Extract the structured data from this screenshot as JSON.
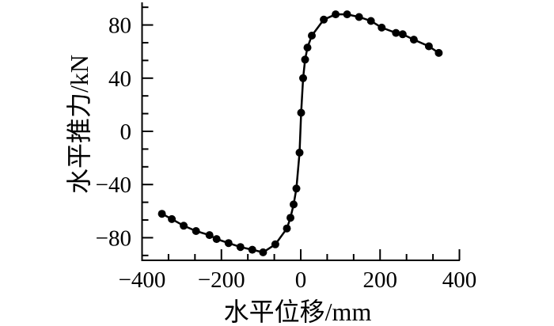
{
  "figure": {
    "background": "#ffffff",
    "ink": "#000000"
  },
  "chart_data": {
    "type": "line",
    "title": "",
    "xlabel": "水平位移/mm",
    "ylabel": "水平推力/kN",
    "xlim": [
      -400,
      400
    ],
    "ylim": [
      -97,
      97
    ],
    "xticks": [
      -400,
      -200,
      0,
      200,
      400
    ],
    "yticks": [
      -80,
      -40,
      0,
      40,
      80
    ],
    "xtick_labels": [
      "−400",
      "−200",
      "0",
      "200",
      "400"
    ],
    "ytick_labels": [
      "−80",
      "−40",
      "0",
      "40",
      "80"
    ],
    "x_minor_divisions": 3,
    "y_minor_divisions": 3,
    "grid": false,
    "legend": "none",
    "marker": "filled-circle",
    "marker_size_px": 10,
    "line_style": "solid",
    "series": [
      {
        "points": [
          [
            -350,
            -62
          ],
          [
            -325,
            -66
          ],
          [
            -295,
            -71
          ],
          [
            -264,
            -75
          ],
          [
            -230,
            -78
          ],
          [
            -212,
            -81
          ],
          [
            -182,
            -84
          ],
          [
            -152,
            -87
          ],
          [
            -122,
            -89
          ],
          [
            -95,
            -91
          ],
          [
            -64,
            -85
          ],
          [
            -35,
            -73
          ],
          [
            -26,
            -65
          ],
          [
            -18,
            -55
          ],
          [
            -11,
            -43
          ],
          [
            -3,
            -16
          ],
          [
            1,
            14
          ],
          [
            6,
            40
          ],
          [
            11,
            54
          ],
          [
            17,
            63
          ],
          [
            28,
            72
          ],
          [
            58,
            84
          ],
          [
            88,
            88
          ],
          [
            117,
            88
          ],
          [
            147,
            86
          ],
          [
            177,
            83
          ],
          [
            204,
            78
          ],
          [
            240,
            74
          ],
          [
            257,
            73
          ],
          [
            285,
            69
          ],
          [
            323,
            64
          ],
          [
            348,
            59
          ]
        ]
      }
    ]
  }
}
